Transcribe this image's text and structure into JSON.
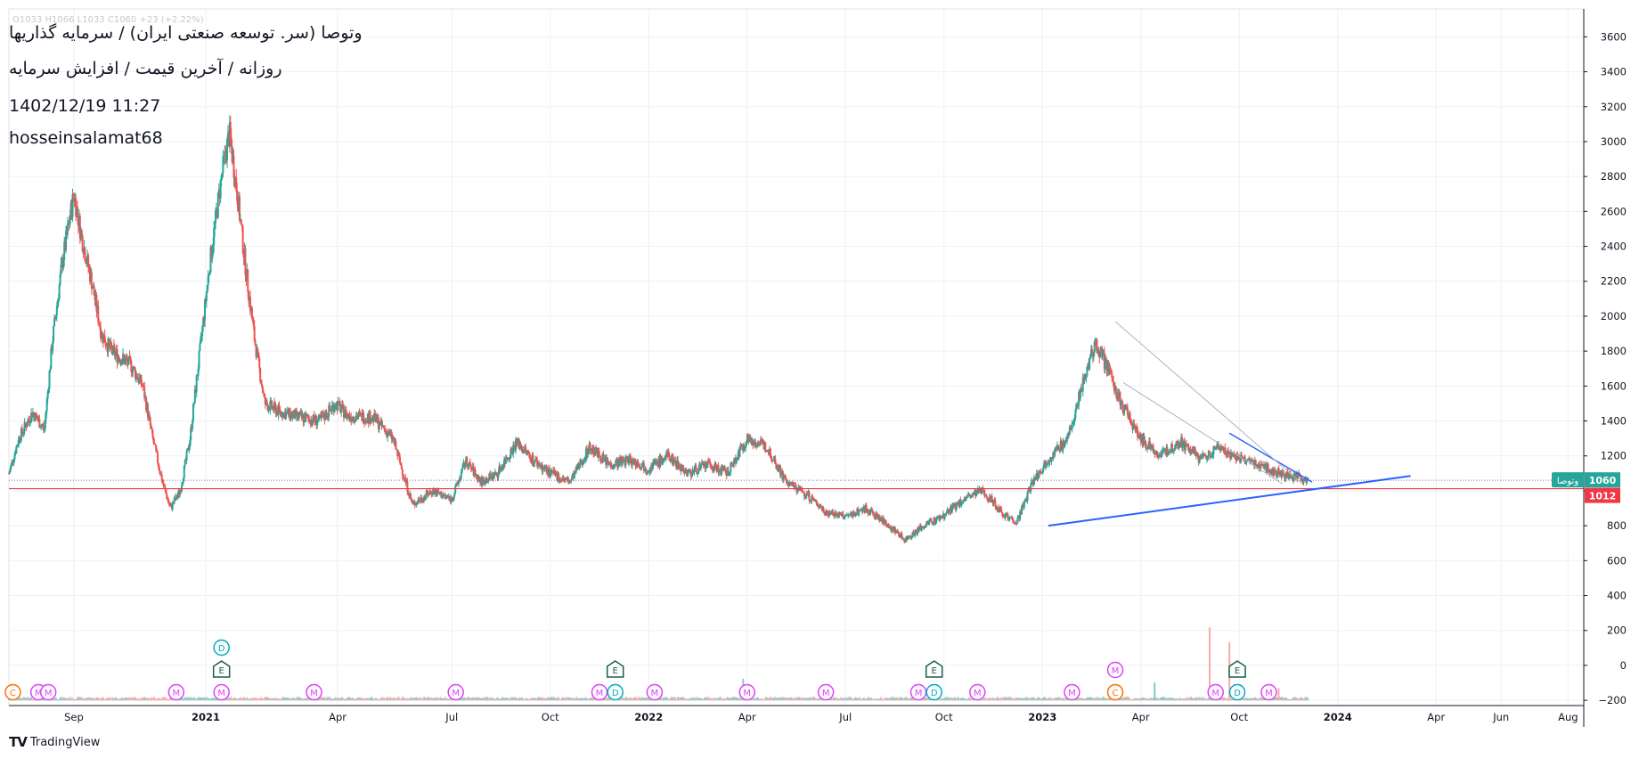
{
  "header": {
    "title": "وتوصا (سر. توسعه صنعتی ایران) / سرمایه گذاریها",
    "meta": "روزانه / آخرین قیمت / افزایش سرمایه",
    "timestamp": "1402/12/19 11:27",
    "author": "hosseinsalamat68",
    "ohlc": "O1033 H1066 L1033 C1060 +23 (+2.22%)"
  },
  "brand": {
    "name": "TradingView",
    "logo": "TV"
  },
  "colors": {
    "up": "#26a69a",
    "down": "#ef5350",
    "grid": "#eef0f3",
    "axis_text": "#131722",
    "trendline": "#2962ff",
    "horizontal_line": "#f23645",
    "last_price_tag": "#26a69a",
    "level_tag": "#f23645"
  },
  "chart_data": {
    "type": "candlestick",
    "price_axis": {
      "ticks": [
        3600,
        3400,
        3200,
        3000,
        2800,
        2600,
        2400,
        2200,
        2000,
        1800,
        1600,
        1400,
        1200,
        1000,
        800,
        600,
        400,
        200,
        0,
        -200
      ],
      "tick_labels": [
        "3600",
        "3400",
        "3200",
        "3000",
        "2800",
        "2600",
        "2400",
        "2200",
        "2000",
        "1800",
        "1600",
        "1400",
        "1200",
        "",
        "800",
        "600",
        "400",
        "200",
        "0",
        "−200"
      ],
      "ylim": [
        -230,
        3760
      ]
    },
    "time_axis": {
      "labels": [
        {
          "text": "Sep",
          "t": 0.33
        },
        {
          "text": "2021",
          "t": 1.0
        },
        {
          "text": "Apr",
          "t": 1.67
        },
        {
          "text": "Jul",
          "t": 2.25
        },
        {
          "text": "Oct",
          "t": 2.75
        },
        {
          "text": "2022",
          "t": 3.25
        },
        {
          "text": "Apr",
          "t": 3.75
        },
        {
          "text": "Jul",
          "t": 4.25
        },
        {
          "text": "Oct",
          "t": 4.75
        },
        {
          "text": "2023",
          "t": 5.25
        },
        {
          "text": "Apr",
          "t": 5.75
        },
        {
          "text": "Oct",
          "t": 6.25
        },
        {
          "text": "2024",
          "t": 6.75
        },
        {
          "text": "Apr",
          "t": 7.25
        },
        {
          "text": "Jun",
          "t": 7.58
        },
        {
          "text": "Aug",
          "t": 7.92
        }
      ],
      "xlim": [
        0,
        8.0
      ]
    },
    "price_path": [
      [
        0.0,
        1100
      ],
      [
        0.05,
        1300
      ],
      [
        0.12,
        1450
      ],
      [
        0.18,
        1350
      ],
      [
        0.22,
        1850
      ],
      [
        0.27,
        2300
      ],
      [
        0.33,
        2700
      ],
      [
        0.37,
        2450
      ],
      [
        0.42,
        2200
      ],
      [
        0.47,
        1900
      ],
      [
        0.52,
        1800
      ],
      [
        0.62,
        1720
      ],
      [
        0.68,
        1600
      ],
      [
        0.73,
        1300
      ],
      [
        0.78,
        1050
      ],
      [
        0.82,
        900
      ],
      [
        0.87,
        1000
      ],
      [
        0.92,
        1300
      ],
      [
        0.97,
        1800
      ],
      [
        1.02,
        2300
      ],
      [
        1.08,
        2800
      ],
      [
        1.12,
        3050
      ],
      [
        1.16,
        2700
      ],
      [
        1.2,
        2300
      ],
      [
        1.25,
        1850
      ],
      [
        1.3,
        1500
      ],
      [
        1.38,
        1450
      ],
      [
        1.48,
        1420
      ],
      [
        1.58,
        1400
      ],
      [
        1.66,
        1500
      ],
      [
        1.72,
        1430
      ],
      [
        1.85,
        1420
      ],
      [
        1.95,
        1300
      ],
      [
        2.05,
        920
      ],
      [
        2.15,
        1000
      ],
      [
        2.25,
        950
      ],
      [
        2.32,
        1170
      ],
      [
        2.4,
        1050
      ],
      [
        2.48,
        1100
      ],
      [
        2.58,
        1280
      ],
      [
        2.66,
        1180
      ],
      [
        2.75,
        1100
      ],
      [
        2.85,
        1050
      ],
      [
        2.95,
        1250
      ],
      [
        3.05,
        1150
      ],
      [
        3.15,
        1180
      ],
      [
        3.25,
        1130
      ],
      [
        3.35,
        1200
      ],
      [
        3.45,
        1100
      ],
      [
        3.55,
        1150
      ],
      [
        3.65,
        1100
      ],
      [
        3.75,
        1300
      ],
      [
        3.85,
        1250
      ],
      [
        3.95,
        1050
      ],
      [
        4.05,
        980
      ],
      [
        4.15,
        880
      ],
      [
        4.25,
        850
      ],
      [
        4.35,
        900
      ],
      [
        4.45,
        820
      ],
      [
        4.55,
        720
      ],
      [
        4.65,
        800
      ],
      [
        4.75,
        860
      ],
      [
        4.85,
        950
      ],
      [
        4.95,
        1000
      ],
      [
        5.05,
        870
      ],
      [
        5.12,
        820
      ],
      [
        5.2,
        1050
      ],
      [
        5.28,
        1180
      ],
      [
        5.38,
        1300
      ],
      [
        5.45,
        1600
      ],
      [
        5.52,
        1850
      ],
      [
        5.58,
        1700
      ],
      [
        5.65,
        1500
      ],
      [
        5.75,
        1300
      ],
      [
        5.85,
        1200
      ],
      [
        5.95,
        1280
      ],
      [
        6.05,
        1180
      ],
      [
        6.15,
        1250
      ],
      [
        6.25,
        1180
      ],
      [
        6.35,
        1150
      ],
      [
        6.45,
        1100
      ],
      [
        6.55,
        1080
      ],
      [
        6.6,
        1060
      ]
    ],
    "volume_spikes": [
      {
        "t": 1.55,
        "v": 160
      },
      {
        "t": 3.73,
        "v": 230
      },
      {
        "t": 5.82,
        "v": 190
      },
      {
        "t": 6.1,
        "v": 780
      },
      {
        "t": 6.2,
        "v": 620
      },
      {
        "t": 6.45,
        "v": 130
      }
    ],
    "last_price": {
      "value": 1060,
      "symbol_tag": "وتوصا",
      "label": "1060"
    },
    "horizontal_level": {
      "value": 1012,
      "label": "1012"
    },
    "trendlines": [
      {
        "points": [
          [
            5.28,
            800
          ],
          [
            7.12,
            1085
          ]
        ],
        "color": "trendline",
        "width": 2
      },
      {
        "points": [
          [
            6.2,
            1330
          ],
          [
            6.62,
            1050
          ]
        ],
        "color": "trendline",
        "width": 1.5
      },
      {
        "points": [
          [
            5.62,
            1970
          ],
          [
            6.57,
            1040
          ]
        ],
        "color": "gray",
        "width": 1
      },
      {
        "points": [
          [
            5.66,
            1620
          ],
          [
            6.47,
            1040
          ]
        ],
        "color": "gray",
        "width": 1
      }
    ],
    "event_markers": [
      {
        "t": 0.02,
        "row": 0,
        "letter": "C",
        "kind": "C"
      },
      {
        "t": 0.15,
        "row": 0,
        "letter": "M",
        "kind": "M"
      },
      {
        "t": 0.2,
        "row": 0,
        "letter": "M",
        "kind": "M"
      },
      {
        "t": 0.85,
        "row": 0,
        "letter": "M",
        "kind": "M"
      },
      {
        "t": 1.08,
        "row": 0,
        "letter": "M",
        "kind": "M"
      },
      {
        "t": 1.08,
        "row": 1,
        "letter": "E",
        "kind": "E"
      },
      {
        "t": 1.08,
        "row": 2,
        "letter": "D",
        "kind": "D"
      },
      {
        "t": 1.55,
        "row": 0,
        "letter": "M",
        "kind": "M"
      },
      {
        "t": 2.27,
        "row": 0,
        "letter": "M",
        "kind": "M"
      },
      {
        "t": 3.0,
        "row": 0,
        "letter": "M",
        "kind": "M"
      },
      {
        "t": 3.08,
        "row": 0,
        "letter": "D",
        "kind": "D"
      },
      {
        "t": 3.08,
        "row": 1,
        "letter": "E",
        "kind": "E"
      },
      {
        "t": 3.28,
        "row": 0,
        "letter": "M",
        "kind": "M"
      },
      {
        "t": 3.75,
        "row": 0,
        "letter": "M",
        "kind": "M"
      },
      {
        "t": 4.15,
        "row": 0,
        "letter": "M",
        "kind": "M"
      },
      {
        "t": 4.62,
        "row": 0,
        "letter": "M",
        "kind": "M"
      },
      {
        "t": 4.7,
        "row": 0,
        "letter": "D",
        "kind": "D"
      },
      {
        "t": 4.7,
        "row": 1,
        "letter": "E",
        "kind": "E"
      },
      {
        "t": 4.92,
        "row": 0,
        "letter": "M",
        "kind": "M"
      },
      {
        "t": 5.4,
        "row": 0,
        "letter": "M",
        "kind": "M"
      },
      {
        "t": 5.62,
        "row": 0,
        "letter": "C",
        "kind": "C"
      },
      {
        "t": 5.62,
        "row": 1,
        "letter": "M",
        "kind": "M"
      },
      {
        "t": 6.13,
        "row": 0,
        "letter": "M",
        "kind": "M"
      },
      {
        "t": 6.24,
        "row": 0,
        "letter": "D",
        "kind": "D"
      },
      {
        "t": 6.24,
        "row": 1,
        "letter": "E",
        "kind": "E"
      },
      {
        "t": 6.4,
        "row": 0,
        "letter": "M",
        "kind": "M"
      }
    ]
  }
}
